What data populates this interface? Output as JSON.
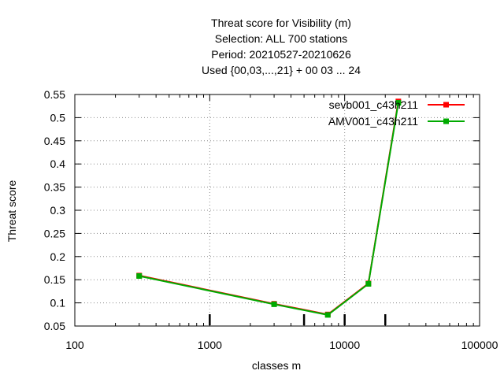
{
  "chart_data": {
    "type": "line",
    "title_lines": [
      "Threat score  for Visibility (m)",
      "Selection: ALL    700 stations",
      "Period: 20210527-20210626",
      "Used {00,03,...,21} + 00 03 ... 24"
    ],
    "xlabel": "classes m",
    "ylabel": "Threat score",
    "xscale": "log",
    "xlim": [
      100,
      100000
    ],
    "ylim": [
      0.05,
      0.55
    ],
    "xticks": [
      100,
      1000,
      10000,
      100000
    ],
    "xtick_labels": [
      "100",
      "1000",
      "10000",
      "100000"
    ],
    "yticks": [
      0.05,
      0.1,
      0.15,
      0.2,
      0.25,
      0.3,
      0.35,
      0.4,
      0.45,
      0.5,
      0.55
    ],
    "ytick_labels": [
      "0.05",
      "0.1",
      "0.15",
      "0.2",
      "0.25",
      "0.3",
      "0.35",
      "0.4",
      "0.45",
      "0.5",
      "0.55"
    ],
    "grid": true,
    "legend_position": "top-right",
    "class_markers_x": [
      1000,
      5000,
      10000,
      20000
    ],
    "series": [
      {
        "name": "sevb001_c43h211",
        "color": "#ff0000",
        "x": [
          300,
          3000,
          7500,
          15000,
          25000
        ],
        "y": [
          0.159,
          0.098,
          0.075,
          0.142,
          0.535
        ]
      },
      {
        "name": "AMV001_c43h211",
        "color": "#00aa00",
        "x": [
          300,
          3000,
          7500,
          15000,
          25000
        ],
        "y": [
          0.158,
          0.097,
          0.074,
          0.141,
          0.532
        ]
      }
    ]
  }
}
